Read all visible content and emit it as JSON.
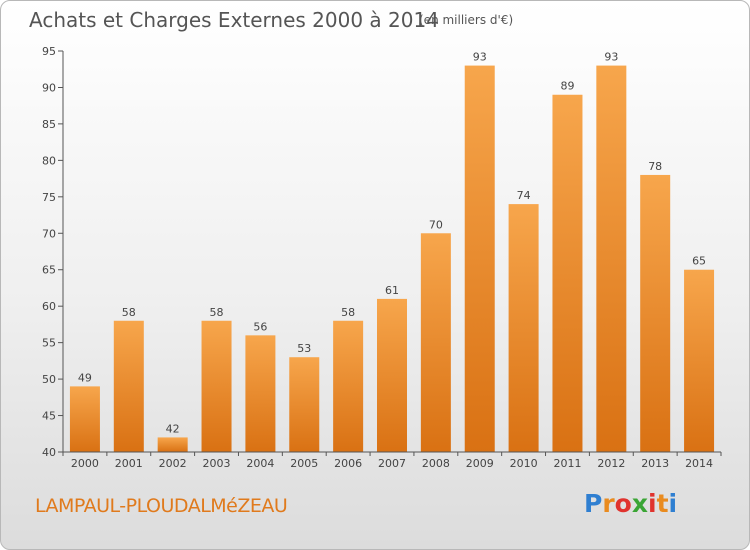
{
  "header": {
    "title": "Achats et Charges Externes 2000 à 2014",
    "subtitle": "(en milliers d'€)"
  },
  "footer": {
    "commune": "LAMPAUL-PLOUDALMéZEAU",
    "logo_letters": [
      "P",
      "r",
      "o",
      "x",
      "i",
      "t",
      "i"
    ],
    "logo_colors": [
      "#2f7fd1",
      "#e98b1f",
      "#e0332e",
      "#3aa535",
      "#e0332e",
      "#e98b1f",
      "#2f7fd1"
    ]
  },
  "colors": {
    "bar_top": "#f7a64c",
    "bar_bottom": "#d97113",
    "axis": "#555555",
    "grid": "#dddddd"
  },
  "chart_data": {
    "type": "bar",
    "categories": [
      "2000",
      "2001",
      "2002",
      "2003",
      "2004",
      "2005",
      "2006",
      "2007",
      "2008",
      "2009",
      "2010",
      "2011",
      "2012",
      "2013",
      "2014"
    ],
    "values": [
      49,
      58,
      42,
      58,
      56,
      53,
      58,
      61,
      70,
      93,
      74,
      89,
      93,
      78,
      65
    ],
    "ylim": [
      40,
      95
    ],
    "yticks": [
      "40",
      "45",
      "50",
      "55",
      "60",
      "65",
      "70",
      "75",
      "80",
      "85",
      "90",
      "95"
    ],
    "grid": false
  }
}
